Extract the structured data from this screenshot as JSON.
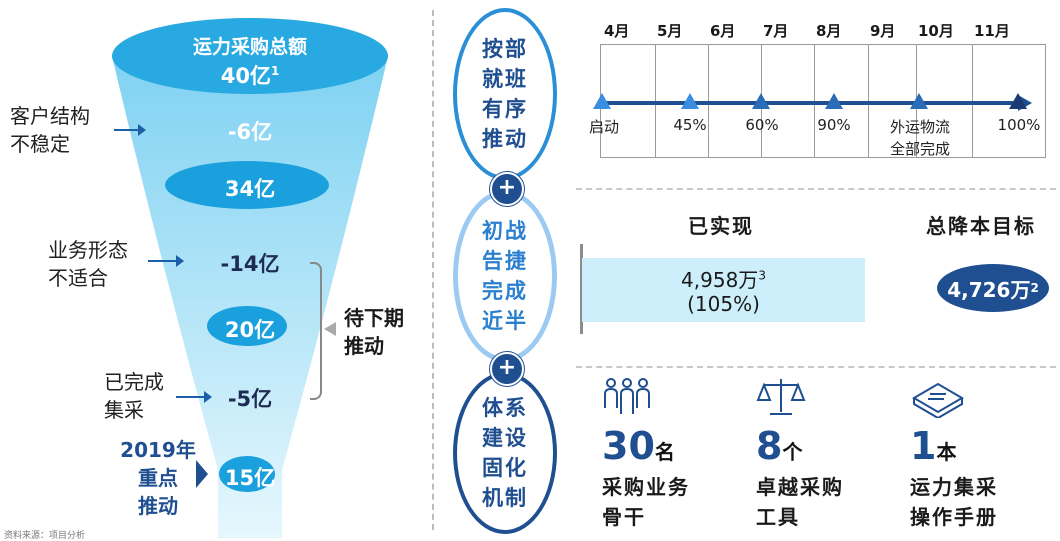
{
  "funnel": {
    "title": "运力采购总额",
    "total": "40亿",
    "total_sup": "1",
    "step1": "-6亿",
    "level1": "34亿",
    "step2": "-14亿",
    "level2": "20亿",
    "step3": "-5亿",
    "level3": "15亿"
  },
  "labels": {
    "cust_line1": "客户结构",
    "cust_line2": "不稳定",
    "biz_line1": "业务形态",
    "biz_line2": "不适合",
    "done_line1": "已完成",
    "done_line2": "集采",
    "pending_line1": "待下期",
    "pending_line2": "推动",
    "focus_line1": "2019年",
    "focus_line2": "重点",
    "focus_line3": "推动"
  },
  "ovals": {
    "o1": "按部就班有序推动",
    "o2": "初战告捷完成近半",
    "o3": "体系建设固化机制",
    "plus": "+"
  },
  "timeline": {
    "months": [
      "4月",
      "5月",
      "6月",
      "7月",
      "8月",
      "9月",
      "10月",
      "11月"
    ],
    "milestones": [
      "启动",
      "45%",
      "60%",
      "90%",
      "外运物流全部完成",
      "100%"
    ],
    "ms5_line1": "外运物流",
    "ms5_line2": "全部完成"
  },
  "savings": {
    "realized_head": "已实现",
    "target_head": "总降本目标",
    "realized_value": "4,958万",
    "realized_sup": "3",
    "realized_pct": "(105%)",
    "target_value": "4,726万",
    "target_sup": "2"
  },
  "achievements": {
    "a1_num": "30",
    "a1_unit": "名",
    "a1_line1": "采购业务",
    "a1_line2": "骨干",
    "a2_num": "8",
    "a2_unit": "个",
    "a2_line1": "卓越采购",
    "a2_line2": "工具",
    "a3_num": "1",
    "a3_unit": "本",
    "a3_line1": "运力集采",
    "a3_line2": "操作手册"
  },
  "footer": "资料来源：项目分析"
}
